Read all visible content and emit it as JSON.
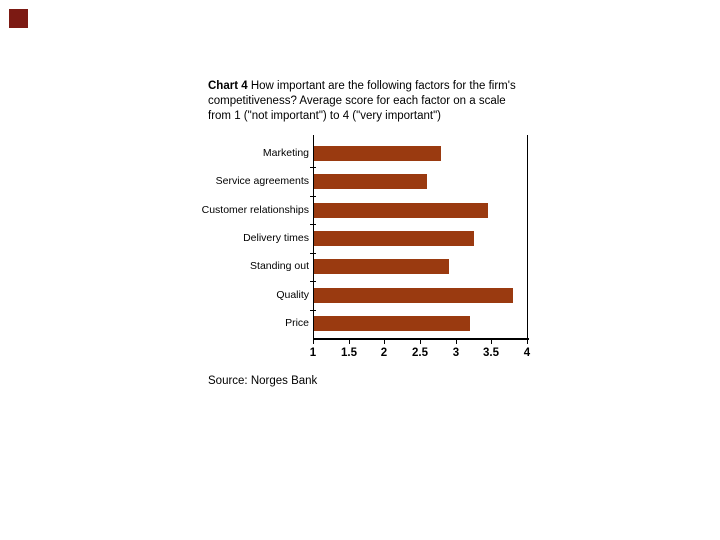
{
  "page": {
    "background_color": "#ffffff",
    "corner_accent_color": "#7c1a13"
  },
  "title": {
    "bold_prefix": "Chart 4",
    "line1_rest": " How important are the following factors for the firm's",
    "line2": "competitiveness? Average score for each factor on a scale",
    "line3": "from 1 (\"not important\") to 4 (\"very important\")"
  },
  "source_text": "Source: Norges Bank",
  "chart_data": {
    "type": "bar",
    "orientation": "horizontal",
    "title": "Chart 4 How important are the following factors for the firm's competitiveness? Average score for each factor on a scale from 1 (\"not important\") to 4 (\"very important\")",
    "categories": [
      "Marketing",
      "Service agreements",
      "Customer relationships",
      "Delivery times",
      "Standing out",
      "Quality",
      "Price"
    ],
    "values": [
      2.8,
      2.6,
      3.45,
      3.25,
      2.9,
      3.8,
      3.2
    ],
    "xlim": [
      1,
      4
    ],
    "xticks": [
      1,
      1.5,
      2,
      2.5,
      3,
      3.5,
      4
    ],
    "xtick_labels": [
      "1",
      "1.5",
      "2",
      "2.5",
      "3",
      "3.5",
      "4"
    ],
    "bar_color": "#9a3a10",
    "axis_color": "#000000",
    "grid": false,
    "legend": false,
    "source": "Source: Norges Bank"
  }
}
